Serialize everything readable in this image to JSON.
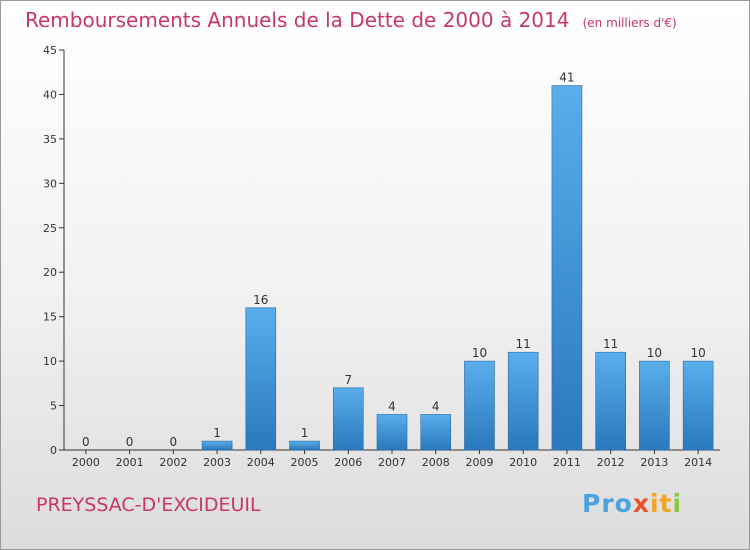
{
  "header": {
    "title": "Remboursements Annuels de la Dette de 2000 à 2014",
    "unit_note": "(en milliers d'€)"
  },
  "footer": {
    "commune": "PREYSSAC-D'EXCIDEUIL",
    "logo_text": "Proxiti",
    "logo_parts": [
      "Pro",
      "x",
      "it",
      "i"
    ]
  },
  "colors": {
    "title": "#c8366a",
    "bar_top": "#5aaeea",
    "bar_bottom": "#2a78bd",
    "axis": "#333333"
  },
  "chart_data": {
    "type": "bar",
    "categories": [
      "2000",
      "2001",
      "2002",
      "2003",
      "2004",
      "2005",
      "2006",
      "2007",
      "2008",
      "2009",
      "2010",
      "2011",
      "2012",
      "2013",
      "2014"
    ],
    "values": [
      0,
      0,
      0,
      1,
      16,
      1,
      7,
      4,
      4,
      10,
      11,
      41,
      11,
      10,
      10
    ],
    "ylim": [
      0,
      45
    ],
    "yticks": [
      0,
      5,
      10,
      15,
      20,
      25,
      30,
      35,
      40,
      45
    ],
    "grid": false,
    "legend": "none"
  }
}
